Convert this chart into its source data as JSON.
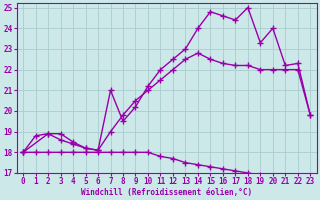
{
  "xlabel": "Windchill (Refroidissement éolien,°C)",
  "bg_color": "#cce8e8",
  "line_color": "#9900aa",
  "grid_color": "#aacccc",
  "xlim": [
    -0.5,
    23.5
  ],
  "ylim": [
    17,
    25.2
  ],
  "xticks": [
    0,
    1,
    2,
    3,
    4,
    5,
    6,
    7,
    8,
    9,
    10,
    11,
    12,
    13,
    14,
    15,
    16,
    17,
    18,
    19,
    20,
    21,
    22,
    23
  ],
  "yticks": [
    17,
    18,
    19,
    20,
    21,
    22,
    23,
    24,
    25
  ],
  "line1_x": [
    0,
    1,
    2,
    3,
    4,
    5,
    6,
    7,
    8,
    9,
    10,
    11,
    12,
    13,
    14,
    15,
    16,
    17,
    18,
    19,
    20,
    21,
    22,
    23
  ],
  "line1_y": [
    18.0,
    18.0,
    18.0,
    18.0,
    18.0,
    18.0,
    18.0,
    18.0,
    18.0,
    18.0,
    18.0,
    17.8,
    17.7,
    17.5,
    17.4,
    17.3,
    17.2,
    17.1,
    17.0,
    16.9,
    16.85,
    16.85,
    16.85,
    16.85
  ],
  "line2_x": [
    0,
    1,
    2,
    3,
    4,
    5,
    6,
    7,
    8,
    9,
    10,
    11,
    12,
    13,
    14,
    15,
    16,
    17,
    18,
    19,
    20,
    21,
    22,
    23
  ],
  "line2_y": [
    18.0,
    18.8,
    18.9,
    18.6,
    18.4,
    18.2,
    18.1,
    19.0,
    19.8,
    20.5,
    21.0,
    21.5,
    22.0,
    22.5,
    22.8,
    22.5,
    22.3,
    22.2,
    22.2,
    22.0,
    22.0,
    22.0,
    22.0,
    19.8
  ],
  "line3_x": [
    0,
    2,
    3,
    4,
    5,
    6,
    7,
    8,
    9,
    10,
    11,
    12,
    13,
    14,
    15,
    16,
    17,
    18,
    19,
    20,
    21,
    22,
    23
  ],
  "line3_y": [
    18.0,
    18.9,
    18.9,
    18.5,
    18.2,
    18.1,
    21.0,
    19.5,
    20.2,
    21.2,
    22.0,
    22.5,
    23.0,
    24.0,
    24.8,
    24.6,
    24.4,
    25.0,
    23.3,
    24.0,
    22.2,
    22.3,
    19.8
  ]
}
